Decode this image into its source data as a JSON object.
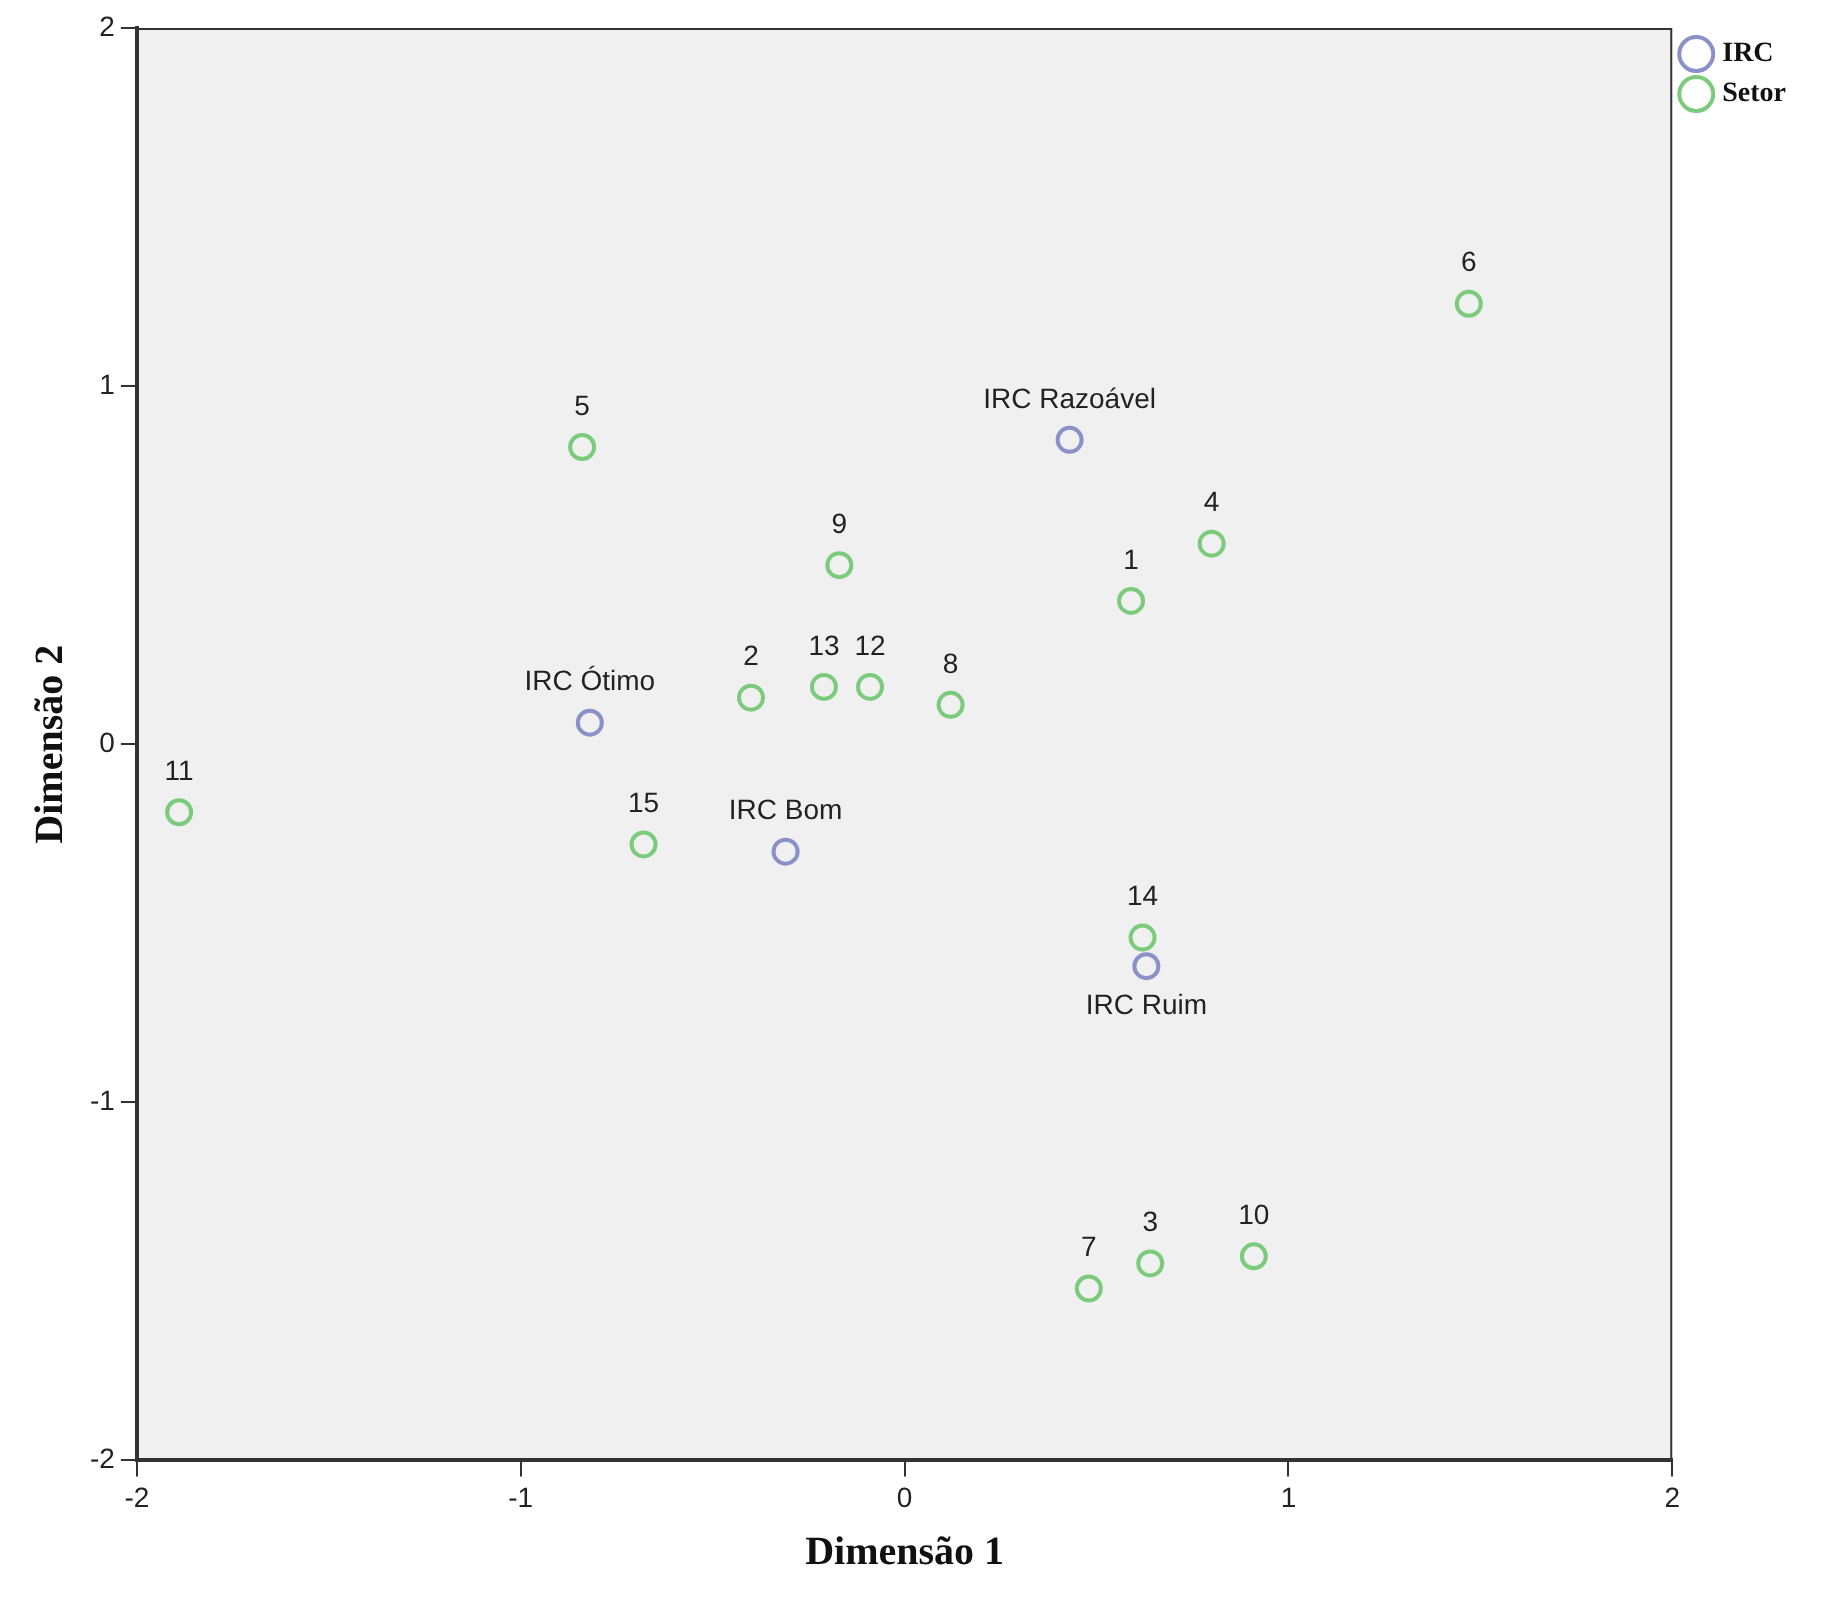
{
  "chart_data": {
    "type": "scatter",
    "xlabel": "Dimensão 1",
    "ylabel": "Dimensão 2",
    "xlim": [
      -2,
      2
    ],
    "ylim": [
      -2,
      2
    ],
    "xticks": [
      -2,
      -1,
      0,
      1,
      2
    ],
    "yticks": [
      -2,
      -1,
      0,
      1,
      2
    ],
    "grid": false,
    "legend": "top right",
    "marker": "circle",
    "series": [
      {
        "name": "IRC",
        "color": "#8a90c8",
        "x": [
          -0.82,
          -0.31,
          0.43,
          0.63
        ],
        "values": [
          0.06,
          -0.3,
          0.85,
          -0.62
        ]
      },
      {
        "name": "Setor",
        "color": "#7ccb7c",
        "x": [
          0.59,
          -0.4,
          0.64,
          0.8,
          -0.84,
          1.47,
          0.48,
          0.12,
          -0.17,
          0.91,
          -1.89,
          -0.09,
          -0.21,
          0.62,
          -0.68
        ],
        "values": [
          0.4,
          0.13,
          -1.45,
          0.56,
          0.83,
          1.23,
          -1.52,
          0.11,
          0.5,
          -1.43,
          -0.19,
          0.16,
          0.16,
          -0.54,
          -0.28
        ]
      }
    ],
    "annotations": [
      {
        "text": "IRC Ótimo",
        "x": -0.82,
        "y": 0.06
      },
      {
        "text": "IRC Bom",
        "x": -0.31,
        "y": -0.3
      },
      {
        "text": "IRC Razoável",
        "x": 0.43,
        "y": 0.85
      },
      {
        "text": "IRC Ruim",
        "x": 0.63,
        "y": -0.62
      },
      {
        "text": "1",
        "x": 0.59,
        "y": 0.4
      },
      {
        "text": "2",
        "x": -0.4,
        "y": 0.13
      },
      {
        "text": "3",
        "x": 0.64,
        "y": -1.45
      },
      {
        "text": "4",
        "x": 0.8,
        "y": 0.56
      },
      {
        "text": "5",
        "x": -0.84,
        "y": 0.83
      },
      {
        "text": "6",
        "x": 1.47,
        "y": 1.23
      },
      {
        "text": "7",
        "x": 0.48,
        "y": -1.52
      },
      {
        "text": "8",
        "x": 0.12,
        "y": 0.11
      },
      {
        "text": "9",
        "x": -0.17,
        "y": 0.5
      },
      {
        "text": "10",
        "x": 0.91,
        "y": -1.43
      },
      {
        "text": "11",
        "x": -1.89,
        "y": -0.19
      },
      {
        "text": "12",
        "x": -0.09,
        "y": 0.16
      },
      {
        "text": "13",
        "x": -0.21,
        "y": 0.16
      },
      {
        "text": "14",
        "x": 0.62,
        "y": -0.54
      },
      {
        "text": "15",
        "x": -0.68,
        "y": -0.28
      }
    ]
  }
}
